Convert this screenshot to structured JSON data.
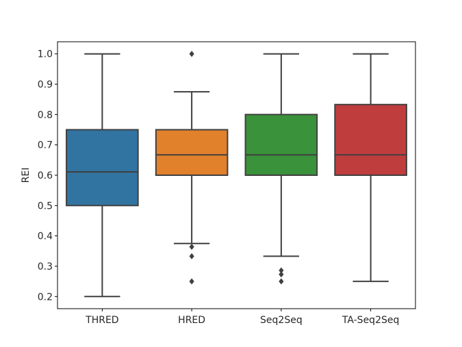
{
  "chart_data": {
    "type": "boxplot",
    "title": "",
    "xlabel": "",
    "ylabel": "REI",
    "ylim": [
      0.16,
      1.04
    ],
    "yticks": [
      0.2,
      0.3,
      0.4,
      0.5,
      0.6,
      0.7,
      0.8,
      0.9,
      1.0
    ],
    "ytick_labels": [
      "0.2",
      "0.3",
      "0.4",
      "0.5",
      "0.6",
      "0.7",
      "0.8",
      "0.9",
      "1.0"
    ],
    "grid": false,
    "legend": "none",
    "categories": [
      "THRED",
      "HRED",
      "Seq2Seq",
      "TA-Seq2Seq"
    ],
    "series": [
      {
        "category": "THRED",
        "color": "#3274a1",
        "whisker_low": 0.2,
        "q1": 0.5,
        "median": 0.611,
        "q3": 0.75,
        "whisker_high": 1.0,
        "outliers": []
      },
      {
        "category": "HRED",
        "color": "#e1812c",
        "whisker_low": 0.375,
        "q1": 0.6,
        "median": 0.667,
        "q3": 0.75,
        "whisker_high": 0.875,
        "outliers": [
          1.0,
          0.364,
          0.333,
          0.25
        ]
      },
      {
        "category": "Seq2Seq",
        "color": "#3a923a",
        "whisker_low": 0.333,
        "q1": 0.6,
        "median": 0.667,
        "q3": 0.8,
        "whisker_high": 1.0,
        "outliers": [
          0.286,
          0.273,
          0.25
        ]
      },
      {
        "category": "TA-Seq2Seq",
        "color": "#c03d3e",
        "whisker_low": 0.25,
        "q1": 0.6,
        "median": 0.667,
        "q3": 0.833,
        "whisker_high": 1.0,
        "outliers": []
      }
    ]
  }
}
